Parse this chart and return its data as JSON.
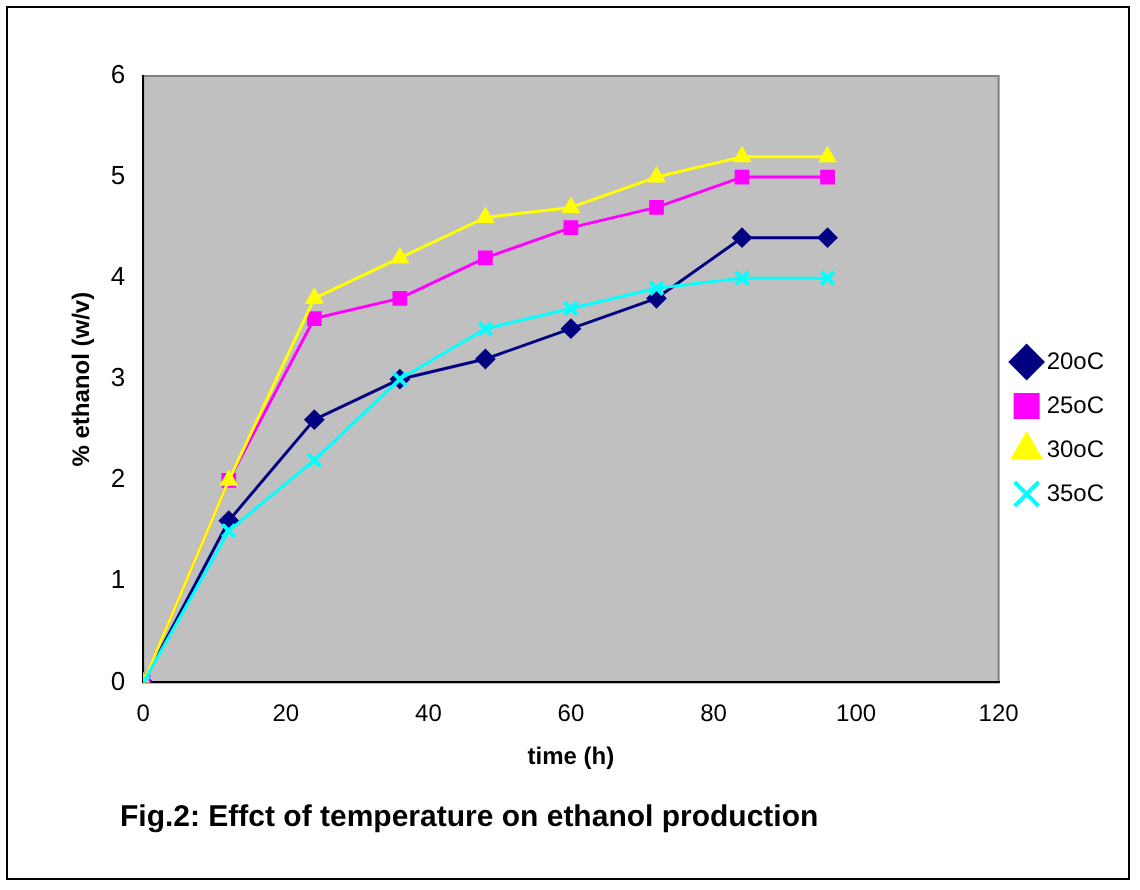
{
  "chart_data": {
    "type": "line",
    "xlabel": "time (h)",
    "ylabel": "% ethanol (w/v)",
    "x": [
      0,
      12,
      24,
      36,
      48,
      60,
      72,
      84,
      96
    ],
    "series": [
      {
        "name": "20oC",
        "color": "#000080",
        "marker": "diamond",
        "values": [
          0,
          1.6,
          2.6,
          3.0,
          3.2,
          3.5,
          3.8,
          4.4,
          4.4
        ]
      },
      {
        "name": "25oC",
        "color": "#ff00ff",
        "marker": "square",
        "values": [
          0,
          2.0,
          3.6,
          3.8,
          4.2,
          4.5,
          4.7,
          5.0,
          5.0
        ]
      },
      {
        "name": "30oC",
        "color": "#ffff00",
        "marker": "triangle",
        "values": [
          0,
          2.0,
          3.8,
          4.2,
          4.6,
          4.7,
          5.0,
          5.2,
          5.2
        ]
      },
      {
        "name": "35oC",
        "color": "#00ffff",
        "marker": "cross",
        "values": [
          0,
          1.5,
          2.2,
          3.0,
          3.5,
          3.7,
          3.9,
          4.0,
          4.0
        ]
      }
    ],
    "xlim": [
      0,
      120
    ],
    "xticks": [
      0,
      20,
      40,
      60,
      80,
      100,
      120
    ],
    "ylim": [
      0,
      6
    ],
    "yticks": [
      0,
      1,
      2,
      3,
      4,
      5,
      6
    ],
    "grid": false,
    "legend": "right",
    "annotations": [
      "Fig.2: Effct of temperature on ethanol production"
    ]
  }
}
